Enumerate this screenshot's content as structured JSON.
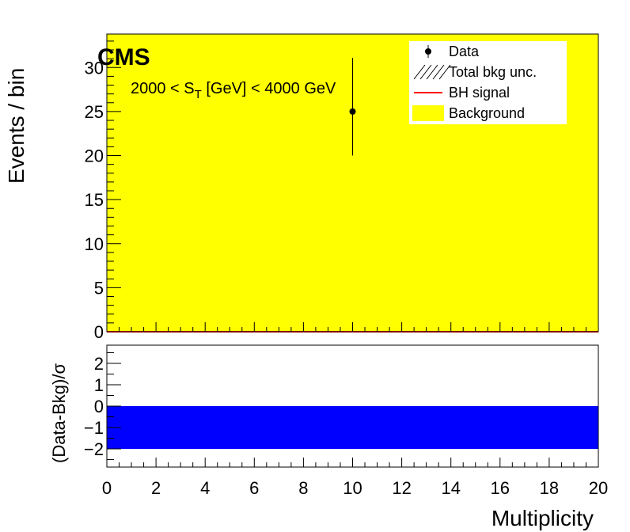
{
  "chart_data": [
    {
      "type": "bar",
      "title": "",
      "experiment_label": "CMS",
      "selection": {
        "left": "2000 < S",
        "sub": "T",
        "right": " [GeV] < 4000 GeV"
      },
      "ylabel": "Events / bin",
      "xlabel": "",
      "xlim": [
        0,
        20
      ],
      "ylim": [
        0,
        33.8
      ],
      "yticks": [
        0,
        5,
        10,
        15,
        20,
        25,
        30
      ],
      "background": {
        "name": "Background",
        "color": "#ffff00",
        "x_range": [
          0,
          20
        ],
        "value": 34
      },
      "signal": {
        "name": "BH signal",
        "color": "#ff0000",
        "value": 0
      },
      "data": [
        {
          "x": 10,
          "y": 25,
          "yerr_low": 5.0,
          "yerr_high": 6.1
        }
      ],
      "legend": {
        "position": "top-right",
        "entries": [
          {
            "label": "Data",
            "style": "marker",
            "color": "#000000"
          },
          {
            "label": "Total bkg unc.",
            "style": "hatch",
            "color": "#000000"
          },
          {
            "label": "BH signal",
            "style": "line",
            "color": "#ff0000"
          },
          {
            "label": "Background",
            "style": "fill",
            "color": "#ffff00"
          }
        ]
      }
    },
    {
      "type": "bar",
      "ylabel": "(Data-Bkg)/σ",
      "xlabel": "Multiplicity",
      "xlim": [
        0,
        20
      ],
      "ylim": [
        -2.85,
        2.85
      ],
      "yticks": [
        -2,
        -1,
        0,
        1,
        2
      ],
      "xticks": [
        0,
        2,
        4,
        6,
        8,
        10,
        12,
        14,
        16,
        18,
        20
      ],
      "band": {
        "x_range": [
          0,
          20
        ],
        "y_range": [
          -2,
          0
        ],
        "color": "#0000ff"
      }
    }
  ]
}
